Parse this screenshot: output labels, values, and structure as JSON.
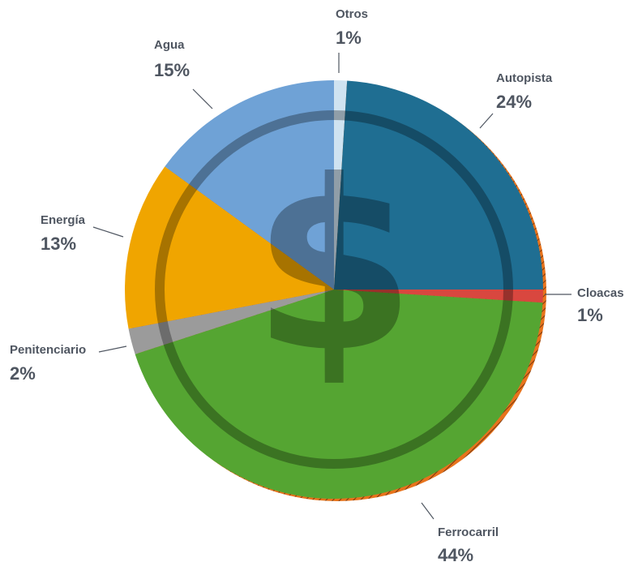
{
  "chart_data": {
    "type": "pie",
    "categories": [
      "Otros",
      "Autopista",
      "Cloacas",
      "Ferrocarril",
      "Penitenciario",
      "Energía",
      "Agua"
    ],
    "values": [
      1,
      24,
      1,
      44,
      2,
      13,
      15
    ],
    "value_labels": [
      "1%",
      "24%",
      "1%",
      "44%",
      "2%",
      "13%",
      "15%"
    ],
    "colors": [
      "#cfe3f1",
      "#1f6e92",
      "#d9473f",
      "#55a532",
      "#9b9b9b",
      "#f0a500",
      "#6fa2d6"
    ]
  }
}
